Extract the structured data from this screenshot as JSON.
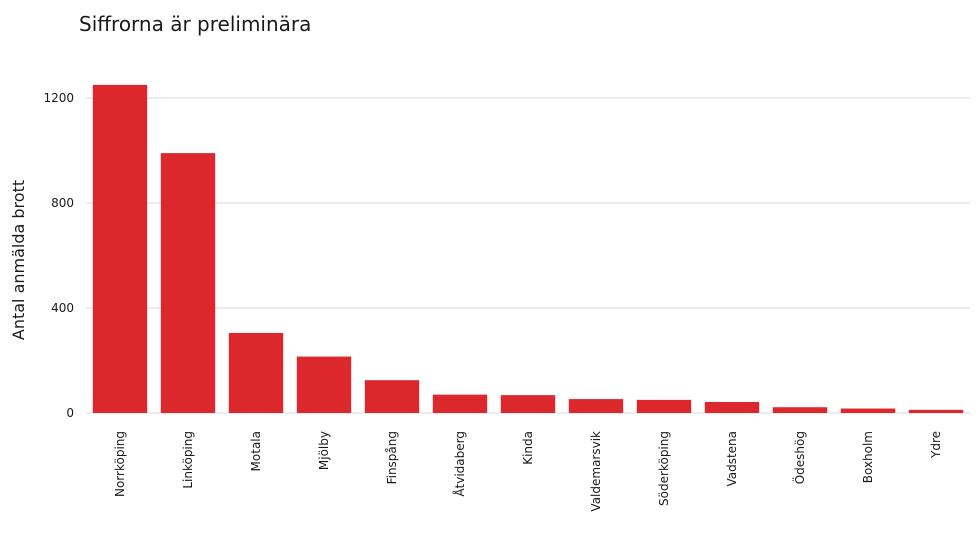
{
  "chart_data": {
    "type": "bar",
    "title": "Siffrorna är preliminära",
    "xlabel": "",
    "ylabel": "Antal anmälda brott",
    "categories": [
      "Norrköping",
      "Linköping",
      "Motala",
      "Mjölby",
      "Finspång",
      "Åtvidaberg",
      "Kinda",
      "Valdemarsvik",
      "Söderköping",
      "Vadstena",
      "Ödeshög",
      "Boxholm",
      "Ydre"
    ],
    "values": [
      1250,
      990,
      305,
      215,
      125,
      70,
      68,
      53,
      50,
      42,
      22,
      17,
      12
    ],
    "ylim": [
      0,
      1300
    ],
    "yticks": [
      0,
      400,
      800,
      1200
    ],
    "ytick_labels": [
      "0",
      "400",
      "800",
      "1200"
    ],
    "grid": true,
    "bar_color": "#dc272d"
  }
}
